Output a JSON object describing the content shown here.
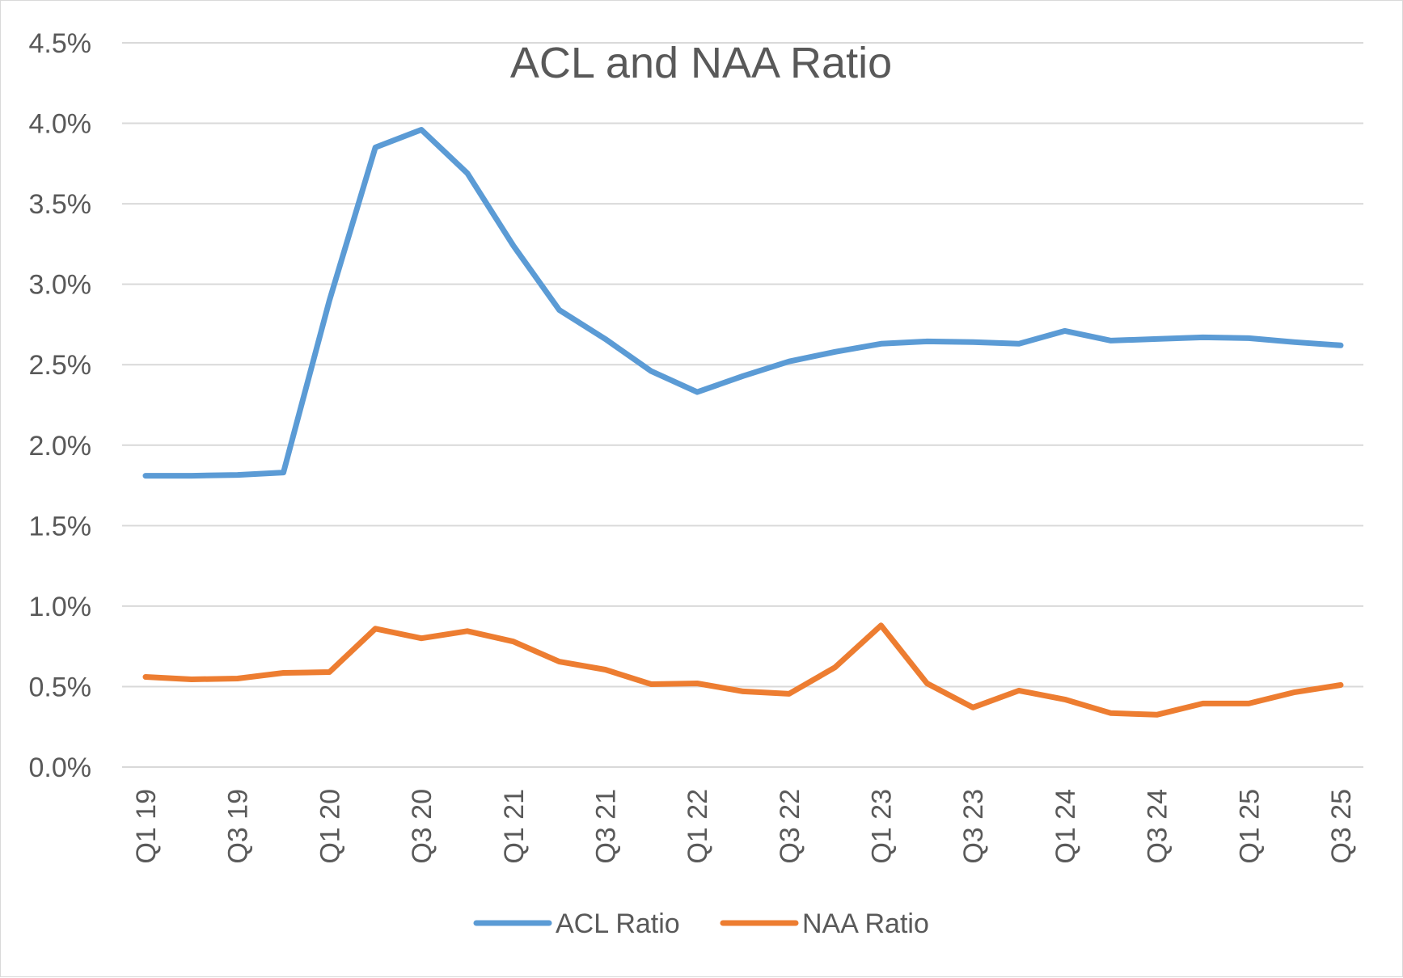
{
  "chart_data": {
    "type": "line",
    "title": "ACL and NAA Ratio",
    "xlabel": "",
    "ylabel": "",
    "ylim": [
      0,
      4.5
    ],
    "ytick_step": 0.5,
    "y_tick_labels": [
      "0.0%",
      "0.5%",
      "1.0%",
      "1.5%",
      "2.0%",
      "2.5%",
      "3.0%",
      "3.5%",
      "4.0%",
      "4.5%"
    ],
    "grid": true,
    "legend_position": "bottom",
    "categories": [
      "Q1 19",
      "Q2 19",
      "Q3 19",
      "Q4 19",
      "Q1 20",
      "Q2 20",
      "Q3 20",
      "Q4 20",
      "Q1 21",
      "Q2 21",
      "Q3 21",
      "Q4 21",
      "Q1 22",
      "Q2 22",
      "Q3 22",
      "Q4 22",
      "Q1 23",
      "Q2 23",
      "Q3 23",
      "Q4 23",
      "Q1 24",
      "Q2 24",
      "Q3 24",
      "Q4 24",
      "Q1 25",
      "Q2 25",
      "Q3 25"
    ],
    "x_tick_labels": [
      "Q1 19",
      "",
      "Q3 19",
      "",
      "Q1 20",
      "",
      "Q3 20",
      "",
      "Q1 21",
      "",
      "Q3 21",
      "",
      "Q1 22",
      "",
      "Q3 22",
      "",
      "Q1 23",
      "",
      "Q3 23",
      "",
      "Q1 24",
      "",
      "Q3 24",
      "",
      "Q1 25",
      "",
      "Q3 25"
    ],
    "series": [
      {
        "name": "ACL Ratio",
        "color": "#5b9bd5",
        "values": [
          1.81,
          1.81,
          1.815,
          1.83,
          2.9,
          3.85,
          3.96,
          3.69,
          3.24,
          2.84,
          2.66,
          2.46,
          2.33,
          2.43,
          2.52,
          2.58,
          2.63,
          2.645,
          2.64,
          2.63,
          2.71,
          2.65,
          2.66,
          2.67,
          2.665,
          2.64,
          2.62
        ]
      },
      {
        "name": "NAA Ratio",
        "color": "#ed7d31",
        "values": [
          0.56,
          0.545,
          0.55,
          0.585,
          0.59,
          0.86,
          0.8,
          0.845,
          0.78,
          0.655,
          0.605,
          0.515,
          0.52,
          0.47,
          0.455,
          0.62,
          0.88,
          0.52,
          0.37,
          0.475,
          0.42,
          0.335,
          0.325,
          0.395,
          0.395,
          0.465,
          0.51
        ]
      }
    ]
  }
}
